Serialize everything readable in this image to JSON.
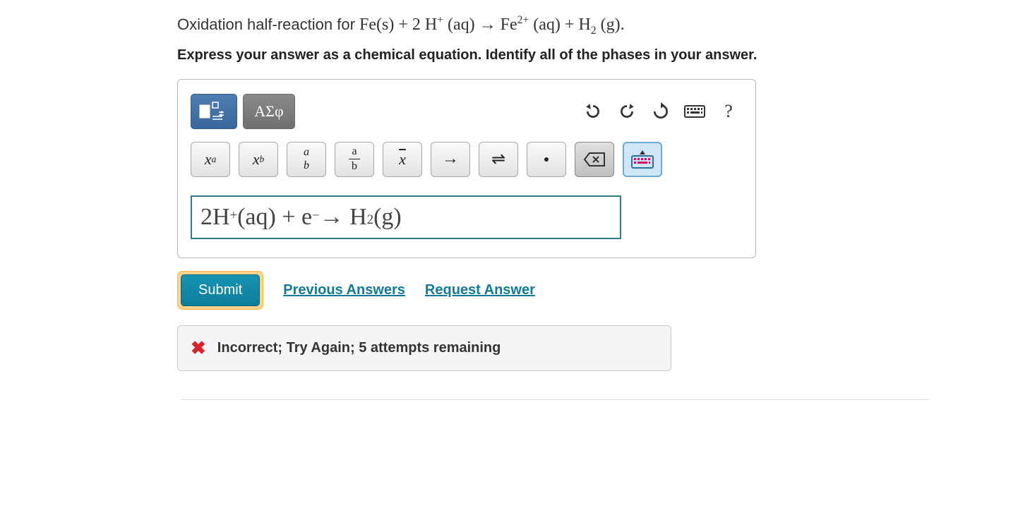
{
  "colors": {
    "panel_border": "#b8b8b8",
    "accent_teal": "#2e7a8f",
    "submit_bg": "#1187a5",
    "submit_halo": "#ffd38a",
    "link": "#117a99",
    "error_red": "#d8232a",
    "toggle_blue": "#38679b",
    "greek_grey": "#6f6f6f",
    "btn_grey": "#e3e3e3",
    "kbd_blue": "#cfe6f7"
  },
  "prompt": {
    "prefix": "Oxidation half-reaction for ",
    "equation_html": "Fe(s) + 2 H<sup class='ss'>+</sup> (aq) → Fe<sup class='ss'>2+</sup> (aq) + H<sub class='ss'>2</sub> (g).",
    "instruction": "Express your answer as a chemical equation. Identify all of the phases in your answer."
  },
  "toolbar_main": {
    "toggle_name": "templates-toggle",
    "greek_label": "ΑΣφ",
    "undo_name": "undo-icon",
    "redo_name": "redo-icon",
    "reset_name": "reset-icon",
    "keyboard_name": "keyboard-icon",
    "help_label": "?"
  },
  "toolbar_math": {
    "items": [
      {
        "key": "sup",
        "html": "x<sup style='font-size:0.6em'>a</sup>",
        "name": "superscript-button"
      },
      {
        "key": "sub",
        "html": "x<sub style='font-size:0.6em'>b</sub>",
        "name": "subscript-button"
      },
      {
        "key": "stack",
        "html": "<span class='frac'><span>a</span><span></span><span>b</span></span>",
        "name": "stack-button",
        "plain_stack": true
      },
      {
        "key": "frac",
        "html": "<span class='frac'><span>a</span><span class='fline'></span><span>b</span></span>",
        "name": "fraction-button"
      },
      {
        "key": "xbar",
        "html": "<span class='overline'>x</span>",
        "name": "x-bar-button"
      },
      {
        "key": "arrow",
        "html": "→",
        "name": "right-arrow-button",
        "style": "font-style:normal;font-size:24px"
      },
      {
        "key": "equil",
        "html": "⇌",
        "name": "equilibrium-arrow-button",
        "style": "font-style:normal;font-size:24px"
      },
      {
        "key": "dot",
        "html": "",
        "name": "dot-button",
        "dot": true
      },
      {
        "key": "bksp",
        "html": "",
        "name": "backspace-button",
        "bksp": true
      },
      {
        "key": "kbd",
        "html": "",
        "name": "keyboard-toggle-button",
        "kbd": true
      }
    ]
  },
  "answer": {
    "value_html": "2H<sup>+</sup>(aq) + e<sup>−</sup> → H<sub>2</sub>(g)"
  },
  "actions": {
    "submit": "Submit",
    "previous": "Previous Answers",
    "request": "Request Answer"
  },
  "feedback": {
    "icon": "✖",
    "message": "Incorrect; Try Again; 5 attempts remaining"
  }
}
